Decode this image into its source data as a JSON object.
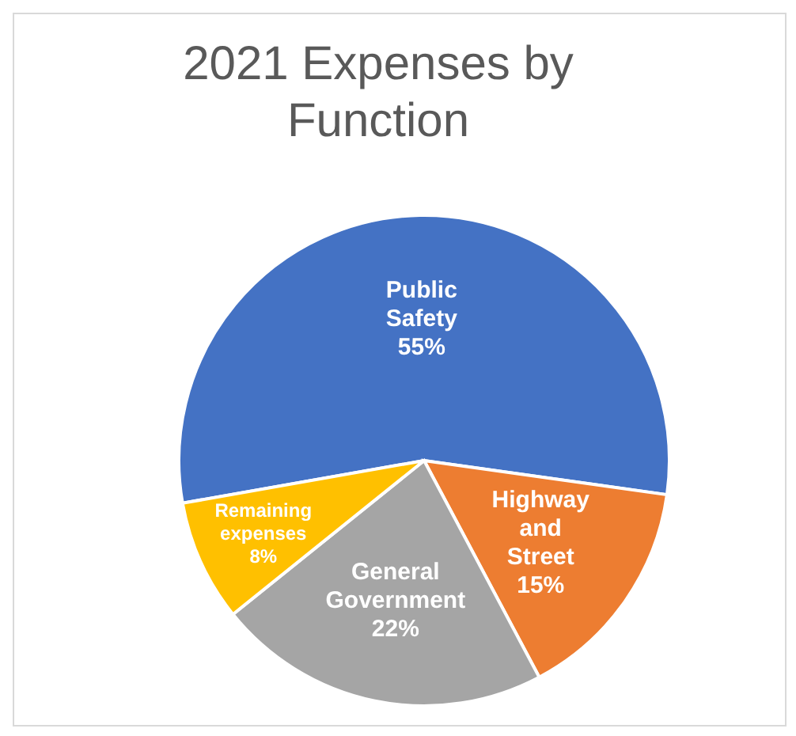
{
  "chart_data": {
    "type": "pie",
    "title": "2021 Expenses by Function",
    "categories": [
      "Public Safety",
      "Highway and Street",
      "General Government",
      "Remaining expenses"
    ],
    "values": [
      55,
      15,
      22,
      8
    ],
    "colors": [
      "#4472c4",
      "#ed7d31",
      "#a5a5a5",
      "#ffc000"
    ],
    "value_labels": [
      "55%",
      "15%",
      "22%",
      "8%"
    ],
    "legend": false
  }
}
